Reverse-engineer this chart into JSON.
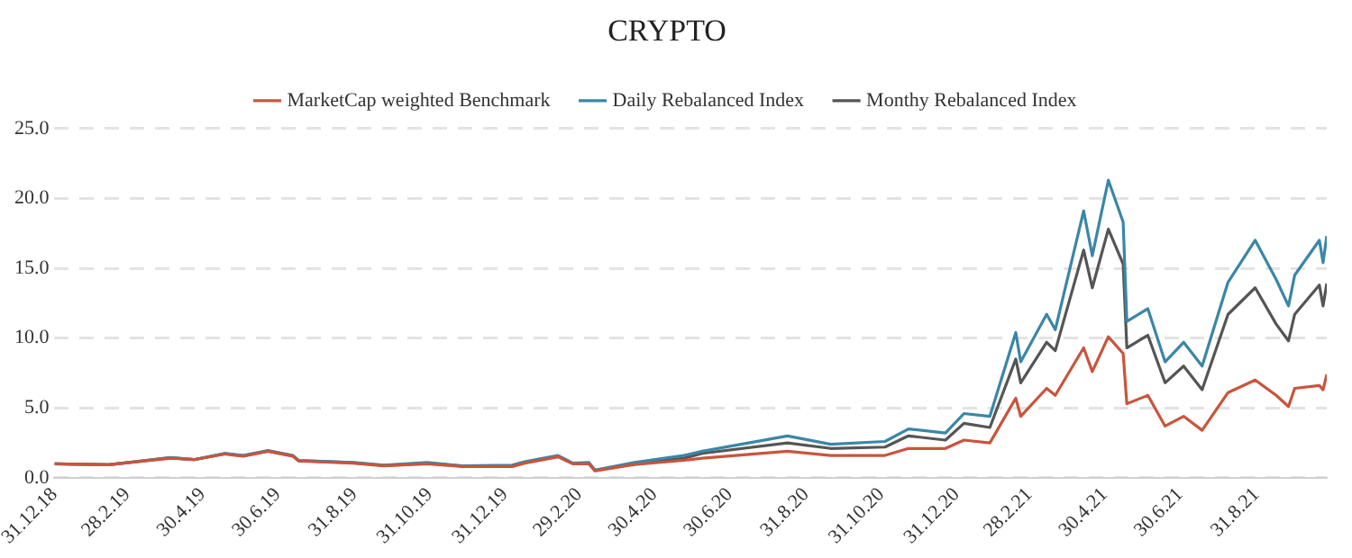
{
  "chart_data": {
    "type": "line",
    "title": "CRYPTO",
    "legend": "top",
    "grid": "y",
    "marker": "none",
    "line_style": "solid",
    "x": [
      "2018-12-31",
      "2019-02-13",
      "2019-04-04",
      "2019-04-23",
      "2019-05-18",
      "2019-06-02",
      "2019-06-22",
      "2019-07-12",
      "2019-07-17",
      "2019-08-30",
      "2019-09-24",
      "2019-10-29",
      "2019-11-27",
      "2020-01-06",
      "2020-01-16",
      "2020-02-12",
      "2020-02-24",
      "2020-03-08",
      "2020-03-13",
      "2020-04-14",
      "2020-05-24",
      "2020-06-08",
      "2020-08-16",
      "2020-09-20",
      "2020-11-03",
      "2020-11-22",
      "2020-12-22",
      "2021-01-06",
      "2021-01-27",
      "2021-02-17",
      "2021-02-21",
      "2021-03-14",
      "2021-03-21",
      "2021-04-13",
      "2021-04-20",
      "2021-05-03",
      "2021-05-15",
      "2021-05-18",
      "2021-06-04",
      "2021-06-18",
      "2021-07-03",
      "2021-07-18",
      "2021-08-08",
      "2021-08-30",
      "2021-09-16",
      "2021-09-26",
      "2021-10-01",
      "2021-10-21",
      "2021-10-24",
      "2021-10-27"
    ],
    "series": [
      {
        "name": "MarketCap weighted Benchmark",
        "color": "#c8553d",
        "values": [
          1.0,
          0.93,
          1.4,
          1.3,
          1.7,
          1.55,
          1.9,
          1.55,
          1.2,
          1.05,
          0.85,
          1.0,
          0.8,
          0.8,
          1.05,
          1.5,
          1.0,
          1.0,
          0.5,
          0.95,
          1.25,
          1.4,
          1.9,
          1.6,
          1.6,
          2.1,
          2.1,
          2.7,
          2.5,
          5.7,
          4.4,
          6.4,
          5.9,
          9.3,
          7.6,
          10.1,
          8.9,
          5.3,
          5.9,
          3.7,
          4.4,
          3.4,
          6.1,
          7.0,
          5.9,
          5.1,
          6.4,
          6.6,
          6.3,
          7.4
        ]
      },
      {
        "name": "Daily Rebalanced Index",
        "color": "#3a86a8",
        "values": [
          1.0,
          0.93,
          1.45,
          1.3,
          1.75,
          1.6,
          1.95,
          1.6,
          1.24,
          1.1,
          0.9,
          1.1,
          0.85,
          0.9,
          1.15,
          1.6,
          1.05,
          1.1,
          0.55,
          1.1,
          1.6,
          1.9,
          3.0,
          2.4,
          2.6,
          3.5,
          3.2,
          4.6,
          4.4,
          10.4,
          8.3,
          11.7,
          10.6,
          19.1,
          15.9,
          21.3,
          18.3,
          11.2,
          12.1,
          8.3,
          9.7,
          8.0,
          14.0,
          17.0,
          14.2,
          12.3,
          14.5,
          17.0,
          15.4,
          17.3
        ]
      },
      {
        "name": "Monthy Rebalanced Index",
        "color": "#555555",
        "values": [
          1.0,
          0.93,
          1.43,
          1.3,
          1.72,
          1.58,
          1.92,
          1.58,
          1.22,
          1.08,
          0.88,
          1.05,
          0.83,
          0.87,
          1.1,
          1.55,
          1.03,
          1.05,
          0.52,
          1.0,
          1.4,
          1.75,
          2.5,
          2.1,
          2.2,
          3.0,
          2.7,
          3.9,
          3.6,
          8.5,
          6.8,
          9.7,
          9.1,
          16.3,
          13.6,
          17.8,
          15.3,
          9.3,
          10.2,
          6.8,
          8.0,
          6.3,
          11.7,
          13.6,
          11.0,
          9.8,
          11.7,
          13.8,
          12.3,
          13.9
        ]
      }
    ],
    "xlim": [
      "2018-12-31",
      "2021-10-27"
    ],
    "xticks": [
      {
        "value": "2018-12-31",
        "label": "31.12.18"
      },
      {
        "value": "2019-02-28",
        "label": "28.2.19"
      },
      {
        "value": "2019-04-30",
        "label": "30.4.19"
      },
      {
        "value": "2019-06-30",
        "label": "30.6.19"
      },
      {
        "value": "2019-08-31",
        "label": "31.8.19"
      },
      {
        "value": "2019-10-31",
        "label": "31.10.19"
      },
      {
        "value": "2019-12-31",
        "label": "31.12.19"
      },
      {
        "value": "2020-02-29",
        "label": "29.2.20"
      },
      {
        "value": "2020-04-30",
        "label": "30.4.20"
      },
      {
        "value": "2020-06-30",
        "label": "30.6.20"
      },
      {
        "value": "2020-08-31",
        "label": "31.8.20"
      },
      {
        "value": "2020-10-31",
        "label": "31.10.20"
      },
      {
        "value": "2020-12-31",
        "label": "31.12.20"
      },
      {
        "value": "2021-02-28",
        "label": "28.2.21"
      },
      {
        "value": "2021-04-30",
        "label": "30.4.21"
      },
      {
        "value": "2021-06-30",
        "label": "30.6.21"
      },
      {
        "value": "2021-08-31",
        "label": "31.8.21"
      }
    ],
    "ylim": [
      0,
      25
    ],
    "yticks": [
      {
        "value": 0,
        "label": "0.0"
      },
      {
        "value": 5,
        "label": "5.0"
      },
      {
        "value": 10,
        "label": "10.0"
      },
      {
        "value": 15,
        "label": "15.0"
      },
      {
        "value": 20,
        "label": "20.0"
      },
      {
        "value": 25,
        "label": "25.0"
      }
    ]
  }
}
